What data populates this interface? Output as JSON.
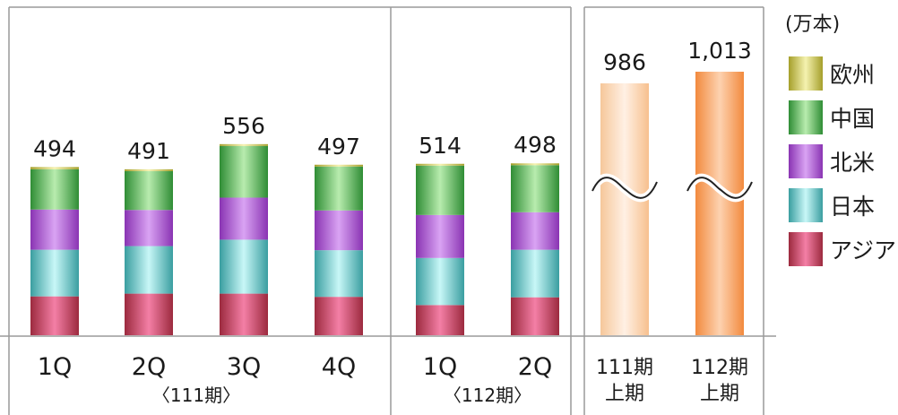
{
  "chart_data": {
    "type": "bar",
    "stacked": true,
    "unit": "(万本)",
    "series": [
      {
        "name": "アジア",
        "color": "#e8507a"
      },
      {
        "name": "日本",
        "color": "#7fd6d6"
      },
      {
        "name": "北米",
        "color": "#b25ed8"
      },
      {
        "name": "中国",
        "color": "#5cbf5c"
      },
      {
        "name": "欧州",
        "color": "#d8d060"
      }
    ],
    "groups": [
      {
        "label": "〈111期〉",
        "bars": [
          {
            "category": "1Q",
            "total_label": "494",
            "segments": [
              85,
              102,
              88,
              88,
              5
            ]
          },
          {
            "category": "2Q",
            "total_label": "491",
            "segments": [
              91,
              104,
              79,
              85,
              4
            ]
          },
          {
            "category": "3Q",
            "total_label": "556",
            "segments": [
              91,
              118,
              92,
              113,
              4
            ]
          },
          {
            "category": "4Q",
            "total_label": "497",
            "segments": [
              84,
              102,
              87,
              96,
              4
            ]
          }
        ]
      },
      {
        "label": "〈112期〉",
        "bars": [
          {
            "category": "1Q",
            "total_label": "514",
            "segments": [
              66,
              103,
              94,
              108,
              4
            ]
          },
          {
            "category": "2Q",
            "total_label": "498",
            "segments": [
              83,
              104,
              82,
              103,
              4
            ]
          }
        ]
      }
    ],
    "halfyear": [
      {
        "category_line1": "111期",
        "category_line2": "上期",
        "total_label": "986"
      },
      {
        "category_line1": "112期",
        "category_line2": "上期",
        "total_label": "1,013"
      }
    ]
  }
}
